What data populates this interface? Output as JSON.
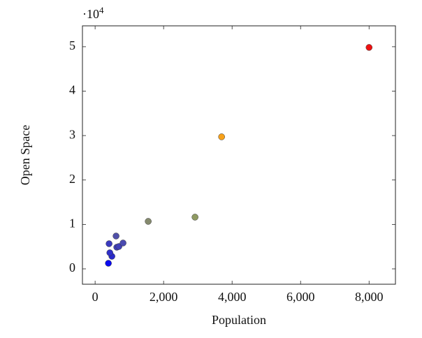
{
  "chart_data": {
    "type": "scatter",
    "x_label": "Population",
    "y_label": "Open Space",
    "y_multiplier": {
      "base": "·10",
      "exponent": "4"
    },
    "x": [
      388,
      490,
      430,
      408,
      612,
      633,
      694,
      816,
      1551,
      2918,
      3694,
      8000
    ],
    "values": [
      1260,
      2830,
      3620,
      5660,
      7390,
      4870,
      5030,
      5820,
      10690,
      11640,
      29720,
      49840
    ],
    "colors": [
      "#0a0af0",
      "#2a2acc",
      "#2f2fc8",
      "#3a3abf",
      "#5050a8",
      "#3e3eb8",
      "#4040b6",
      "#4a4ab0",
      "#858a6e",
      "#8f9a62",
      "#f7a11a",
      "#ee1111"
    ],
    "xlim": [
      -370,
      8770
    ],
    "ylim": [
      -3460,
      54700
    ],
    "xticks": [
      0,
      {
        "value": 2000,
        "label": "2,000"
      },
      {
        "value": 4000,
        "label": "4,000"
      },
      {
        "value": 6000,
        "label": "6,000"
      },
      {
        "value": 8000,
        "label": "8,000"
      }
    ],
    "yticks": [
      {
        "value": 0,
        "label": "0"
      },
      {
        "value": 10000,
        "label": "1"
      },
      {
        "value": 20000,
        "label": "2"
      },
      {
        "value": 30000,
        "label": "3"
      },
      {
        "value": 40000,
        "label": "4"
      },
      {
        "value": 50000,
        "label": "5"
      }
    ]
  }
}
